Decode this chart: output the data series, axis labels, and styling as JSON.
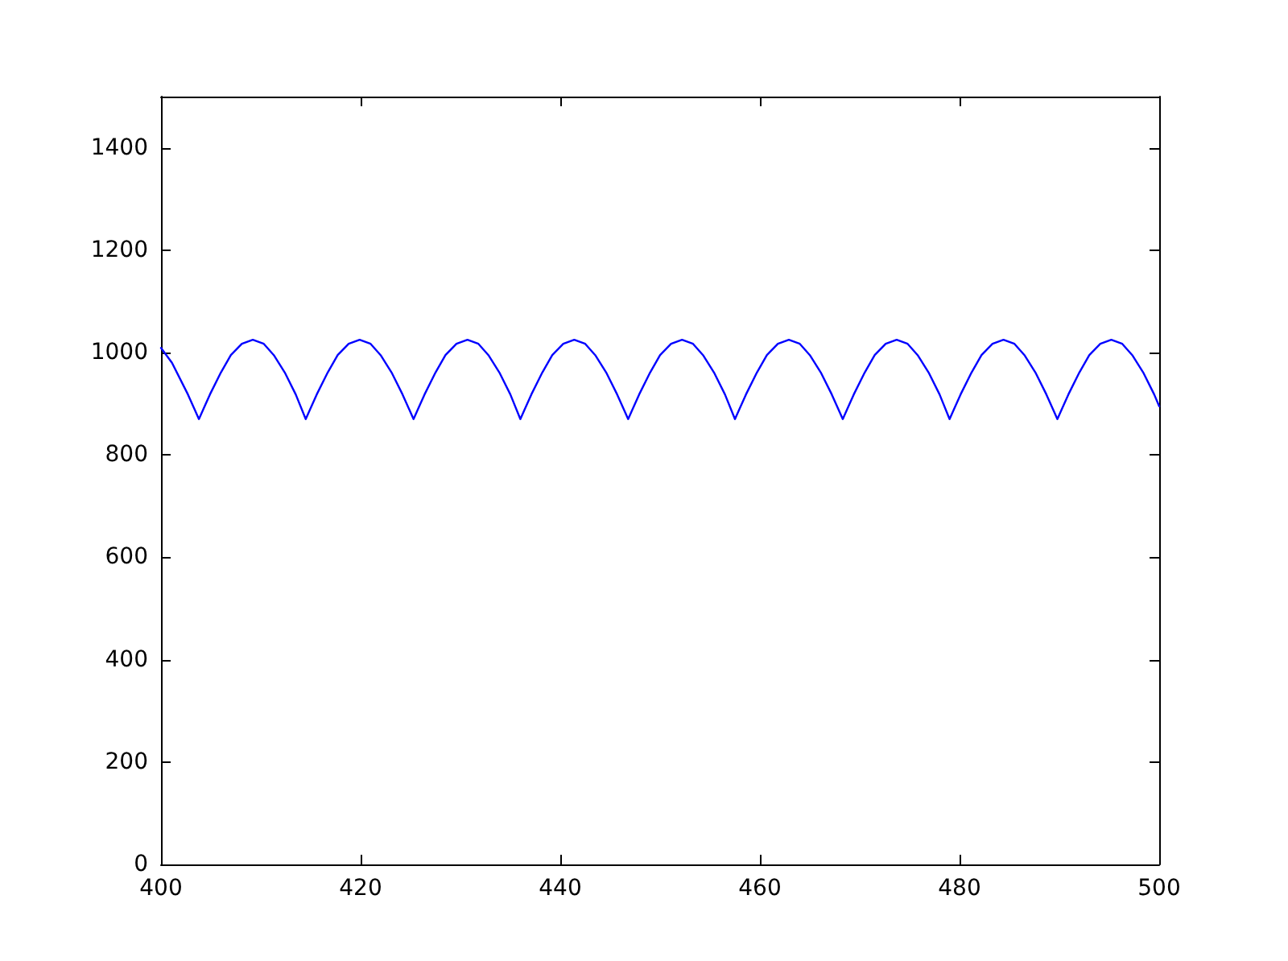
{
  "chart_data": {
    "type": "line",
    "xlim": [
      400,
      500
    ],
    "ylim": [
      0,
      1500
    ],
    "xticks": [
      400,
      420,
      440,
      460,
      480,
      500
    ],
    "yticks": [
      0,
      200,
      400,
      600,
      800,
      1000,
      1200,
      1400
    ],
    "grid": false,
    "marker": "none",
    "line_style": "solid",
    "series": [
      {
        "color": "#0000ff",
        "x": [
          400,
          401.1,
          402.7,
          403.8,
          404.9,
          406.0,
          407.0,
          408.1,
          409.2,
          410.3,
          411.3,
          412.4,
          413.5,
          414.5,
          415.6,
          416.7,
          417.7,
          418.8,
          419.9,
          421.0,
          422.0,
          423.1,
          424.2,
          425.3,
          426.4,
          427.5,
          428.5,
          429.6,
          430.7,
          431.8,
          432.8,
          433.9,
          435.0,
          436.0,
          437.1,
          438.2,
          439.2,
          440.3,
          441.4,
          442.5,
          443.5,
          444.6,
          445.7,
          446.8,
          447.9,
          449.0,
          450.0,
          451.1,
          452.2,
          453.3,
          454.3,
          455.4,
          456.5,
          457.5,
          458.6,
          459.7,
          460.7,
          461.8,
          462.9,
          464.0,
          465.0,
          466.1,
          467.2,
          468.3,
          469.4,
          470.5,
          471.5,
          472.6,
          473.7,
          474.8,
          475.8,
          476.9,
          478.0,
          479.0,
          480.1,
          481.2,
          482.2,
          483.3,
          484.4,
          485.5,
          486.5,
          487.6,
          488.7,
          489.8,
          490.9,
          492.0,
          493.0,
          494.1,
          495.2,
          496.3,
          497.3,
          498.4,
          499.5,
          500
        ],
        "values": [
          1009,
          980,
          918,
          870,
          918,
          961,
          995,
          1017,
          1025,
          1017,
          995,
          961,
          918,
          870,
          918,
          961,
          995,
          1017,
          1025,
          1017,
          995,
          961,
          918,
          870,
          918,
          961,
          995,
          1017,
          1025,
          1017,
          995,
          961,
          918,
          870,
          918,
          961,
          995,
          1017,
          1025,
          1017,
          995,
          961,
          918,
          870,
          918,
          961,
          995,
          1017,
          1025,
          1017,
          995,
          961,
          918,
          870,
          918,
          961,
          995,
          1017,
          1025,
          1017,
          995,
          961,
          918,
          870,
          918,
          961,
          995,
          1017,
          1025,
          1017,
          995,
          961,
          918,
          870,
          918,
          961,
          995,
          1017,
          1025,
          1017,
          995,
          961,
          918,
          870,
          918,
          961,
          995,
          1017,
          1025,
          1017,
          995,
          961,
          918,
          895
        ]
      }
    ]
  }
}
